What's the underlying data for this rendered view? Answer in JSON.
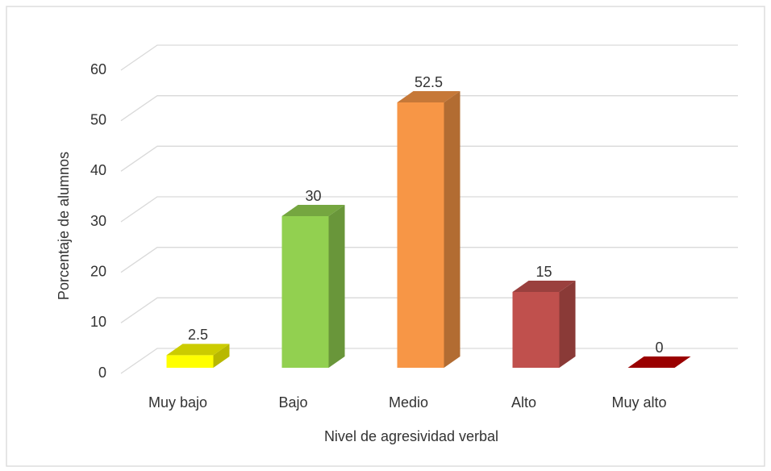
{
  "chart_data": {
    "type": "bar3d",
    "categories": [
      "Muy bajo",
      "Bajo",
      "Medio",
      "Alto",
      "Muy alto"
    ],
    "values": [
      2.5,
      30,
      52.5,
      15,
      0
    ],
    "colors": [
      "#ffff00",
      "#92d050",
      "#f79646",
      "#c0504d",
      "#c00000"
    ],
    "ylim": [
      0,
      60
    ],
    "yticks": [
      0,
      10,
      20,
      30,
      40,
      50,
      60
    ],
    "xlabel": "Nivel de agresividad verbal",
    "ylabel": "Porcentaje de alumnos",
    "grid": true
  }
}
